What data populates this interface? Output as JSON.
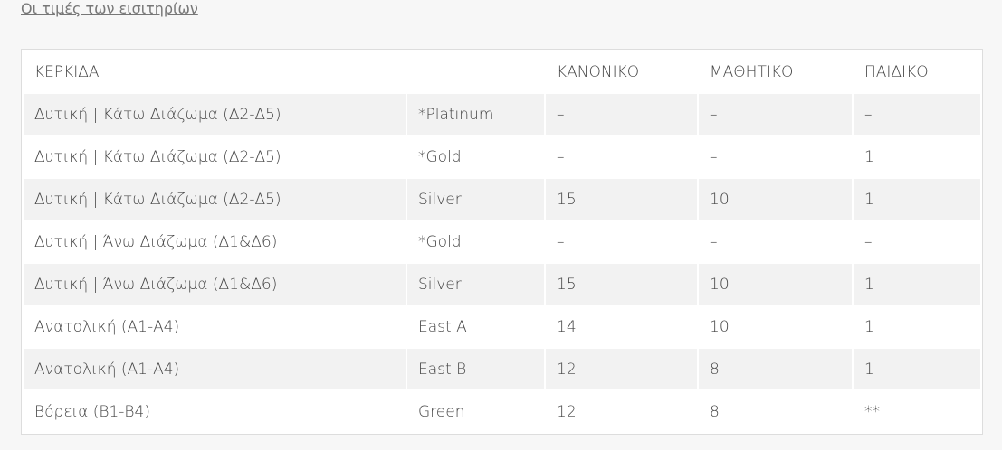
{
  "link": "Οι τιμές των εισιτηρίων",
  "table": {
    "header": [
      "ΚΕΡΚΙΔΑ",
      "ΚΑΝΟΝΙΚΟ",
      "ΜΑΘΗΤΙΚΟ",
      "ΠΑΙΔΙΚΟ"
    ],
    "rows": [
      [
        "Δυτική | Κάτω Διάζωμα (Δ2-Δ5)",
        "*Platinum",
        "–",
        "–",
        "–"
      ],
      [
        "Δυτική | Κάτω Διάζωμα (Δ2-Δ5)",
        "*Gold",
        "–",
        "–",
        "1"
      ],
      [
        "Δυτική | Κάτω Διάζωμα (Δ2-Δ5)",
        "Silver",
        "15",
        "10",
        "1"
      ],
      [
        "Δυτική | Άνω Διάζωμα (Δ1&Δ6)",
        "*Gold",
        "–",
        "–",
        "–"
      ],
      [
        "Δυτική | Άνω Διάζωμα (Δ1&Δ6)",
        "Silver",
        "15",
        "10",
        "1"
      ],
      [
        "Ανατολική (Α1-Α4)",
        "East A",
        "14",
        "10",
        "1"
      ],
      [
        "Ανατολική (Α1-Α4)",
        "East B",
        "12",
        "8",
        "1"
      ],
      [
        "Βόρεια (Β1-Β4)",
        "Green",
        "12",
        "8",
        "**"
      ]
    ]
  }
}
